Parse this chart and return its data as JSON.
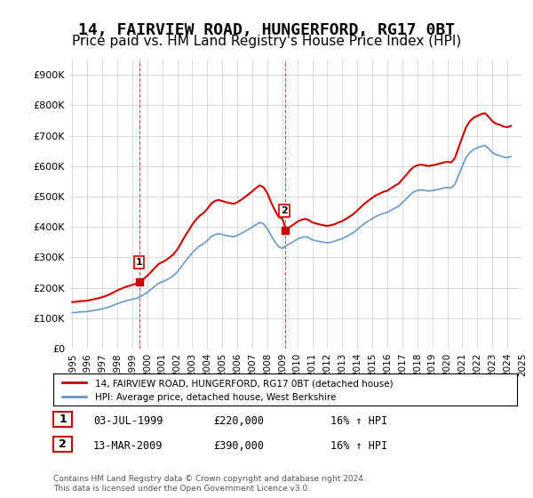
{
  "title": "14, FAIRVIEW ROAD, HUNGERFORD, RG17 0BT",
  "subtitle": "Price paid vs. HM Land Registry's House Price Index (HPI)",
  "title_fontsize": 13,
  "subtitle_fontsize": 11,
  "ylabel_ticks": [
    "£0",
    "£100K",
    "£200K",
    "£300K",
    "£400K",
    "£500K",
    "£600K",
    "£700K",
    "£800K",
    "£900K"
  ],
  "ytick_values": [
    0,
    100000,
    200000,
    300000,
    400000,
    500000,
    600000,
    700000,
    800000,
    900000
  ],
  "ylim": [
    0,
    950000
  ],
  "legend_line1": "14, FAIRVIEW ROAD, HUNGERFORD, RG17 0BT (detached house)",
  "legend_line2": "HPI: Average price, detached house, West Berkshire",
  "marker1_label": "1",
  "marker1_date": "03-JUL-1999",
  "marker1_price": "£220,000",
  "marker1_hpi": "16% ↑ HPI",
  "marker2_label": "2",
  "marker2_date": "13-MAR-2009",
  "marker2_price": "£390,000",
  "marker2_hpi": "16% ↑ HPI",
  "footnote1": "Contains HM Land Registry data © Crown copyright and database right 2024.",
  "footnote2": "This data is licensed under the Open Government Licence v3.0.",
  "red_color": "#cc0000",
  "blue_color": "#6699cc",
  "grid_color": "#cccccc",
  "marker_vline_color": "#cc0000",
  "background_color": "#ffffff",
  "hpi_dates": [
    1995.0,
    1995.25,
    1995.5,
    1995.75,
    1996.0,
    1996.25,
    1996.5,
    1996.75,
    1997.0,
    1997.25,
    1997.5,
    1997.75,
    1998.0,
    1998.25,
    1998.5,
    1998.75,
    1999.0,
    1999.25,
    1999.5,
    1999.75,
    2000.0,
    2000.25,
    2000.5,
    2000.75,
    2001.0,
    2001.25,
    2001.5,
    2001.75,
    2002.0,
    2002.25,
    2002.5,
    2002.75,
    2003.0,
    2003.25,
    2003.5,
    2003.75,
    2004.0,
    2004.25,
    2004.5,
    2004.75,
    2005.0,
    2005.25,
    2005.5,
    2005.75,
    2006.0,
    2006.25,
    2006.5,
    2006.75,
    2007.0,
    2007.25,
    2007.5,
    2007.75,
    2008.0,
    2008.25,
    2008.5,
    2008.75,
    2009.0,
    2009.25,
    2009.5,
    2009.75,
    2010.0,
    2010.25,
    2010.5,
    2010.75,
    2011.0,
    2011.25,
    2011.5,
    2011.75,
    2012.0,
    2012.25,
    2012.5,
    2012.75,
    2013.0,
    2013.25,
    2013.5,
    2013.75,
    2014.0,
    2014.25,
    2014.5,
    2014.75,
    2015.0,
    2015.25,
    2015.5,
    2015.75,
    2016.0,
    2016.25,
    2016.5,
    2016.75,
    2017.0,
    2017.25,
    2017.5,
    2017.75,
    2018.0,
    2018.25,
    2018.5,
    2018.75,
    2019.0,
    2019.25,
    2019.5,
    2019.75,
    2020.0,
    2020.25,
    2020.5,
    2020.75,
    2021.0,
    2021.25,
    2021.5,
    2021.75,
    2022.0,
    2022.25,
    2022.5,
    2022.75,
    2023.0,
    2023.25,
    2023.5,
    2023.75,
    2024.0,
    2024.25
  ],
  "hpi_values": [
    118000,
    119000,
    120500,
    121000,
    122000,
    124000,
    126000,
    128000,
    131000,
    134000,
    138000,
    143000,
    148000,
    152000,
    156000,
    159000,
    162000,
    165000,
    170000,
    177000,
    185000,
    195000,
    205000,
    215000,
    220000,
    225000,
    232000,
    240000,
    252000,
    268000,
    285000,
    300000,
    315000,
    328000,
    338000,
    345000,
    355000,
    368000,
    375000,
    378000,
    375000,
    372000,
    370000,
    368000,
    372000,
    378000,
    385000,
    392000,
    400000,
    408000,
    415000,
    410000,
    395000,
    372000,
    352000,
    335000,
    330000,
    338000,
    345000,
    352000,
    360000,
    365000,
    368000,
    365000,
    358000,
    355000,
    352000,
    350000,
    348000,
    350000,
    353000,
    358000,
    362000,
    368000,
    375000,
    382000,
    392000,
    402000,
    412000,
    420000,
    428000,
    435000,
    440000,
    445000,
    448000,
    455000,
    462000,
    468000,
    480000,
    492000,
    505000,
    515000,
    520000,
    522000,
    520000,
    518000,
    520000,
    522000,
    525000,
    528000,
    530000,
    528000,
    540000,
    570000,
    600000,
    628000,
    645000,
    655000,
    660000,
    665000,
    668000,
    658000,
    645000,
    638000,
    635000,
    630000,
    628000,
    632000
  ],
  "price_paid_dates": [
    1999.5,
    2009.2
  ],
  "price_paid_values": [
    220000,
    390000
  ],
  "sale1_x": 1999.5,
  "sale1_y": 220000,
  "sale2_x": 2009.2,
  "sale2_y": 390000,
  "xlim_start": 1994.8,
  "xlim_end": 2025.0,
  "xtick_years": [
    1995,
    1996,
    1997,
    1998,
    1999,
    2000,
    2001,
    2002,
    2003,
    2004,
    2005,
    2006,
    2007,
    2008,
    2009,
    2010,
    2011,
    2012,
    2013,
    2014,
    2015,
    2016,
    2017,
    2018,
    2019,
    2020,
    2021,
    2022,
    2023,
    2024,
    2025
  ]
}
